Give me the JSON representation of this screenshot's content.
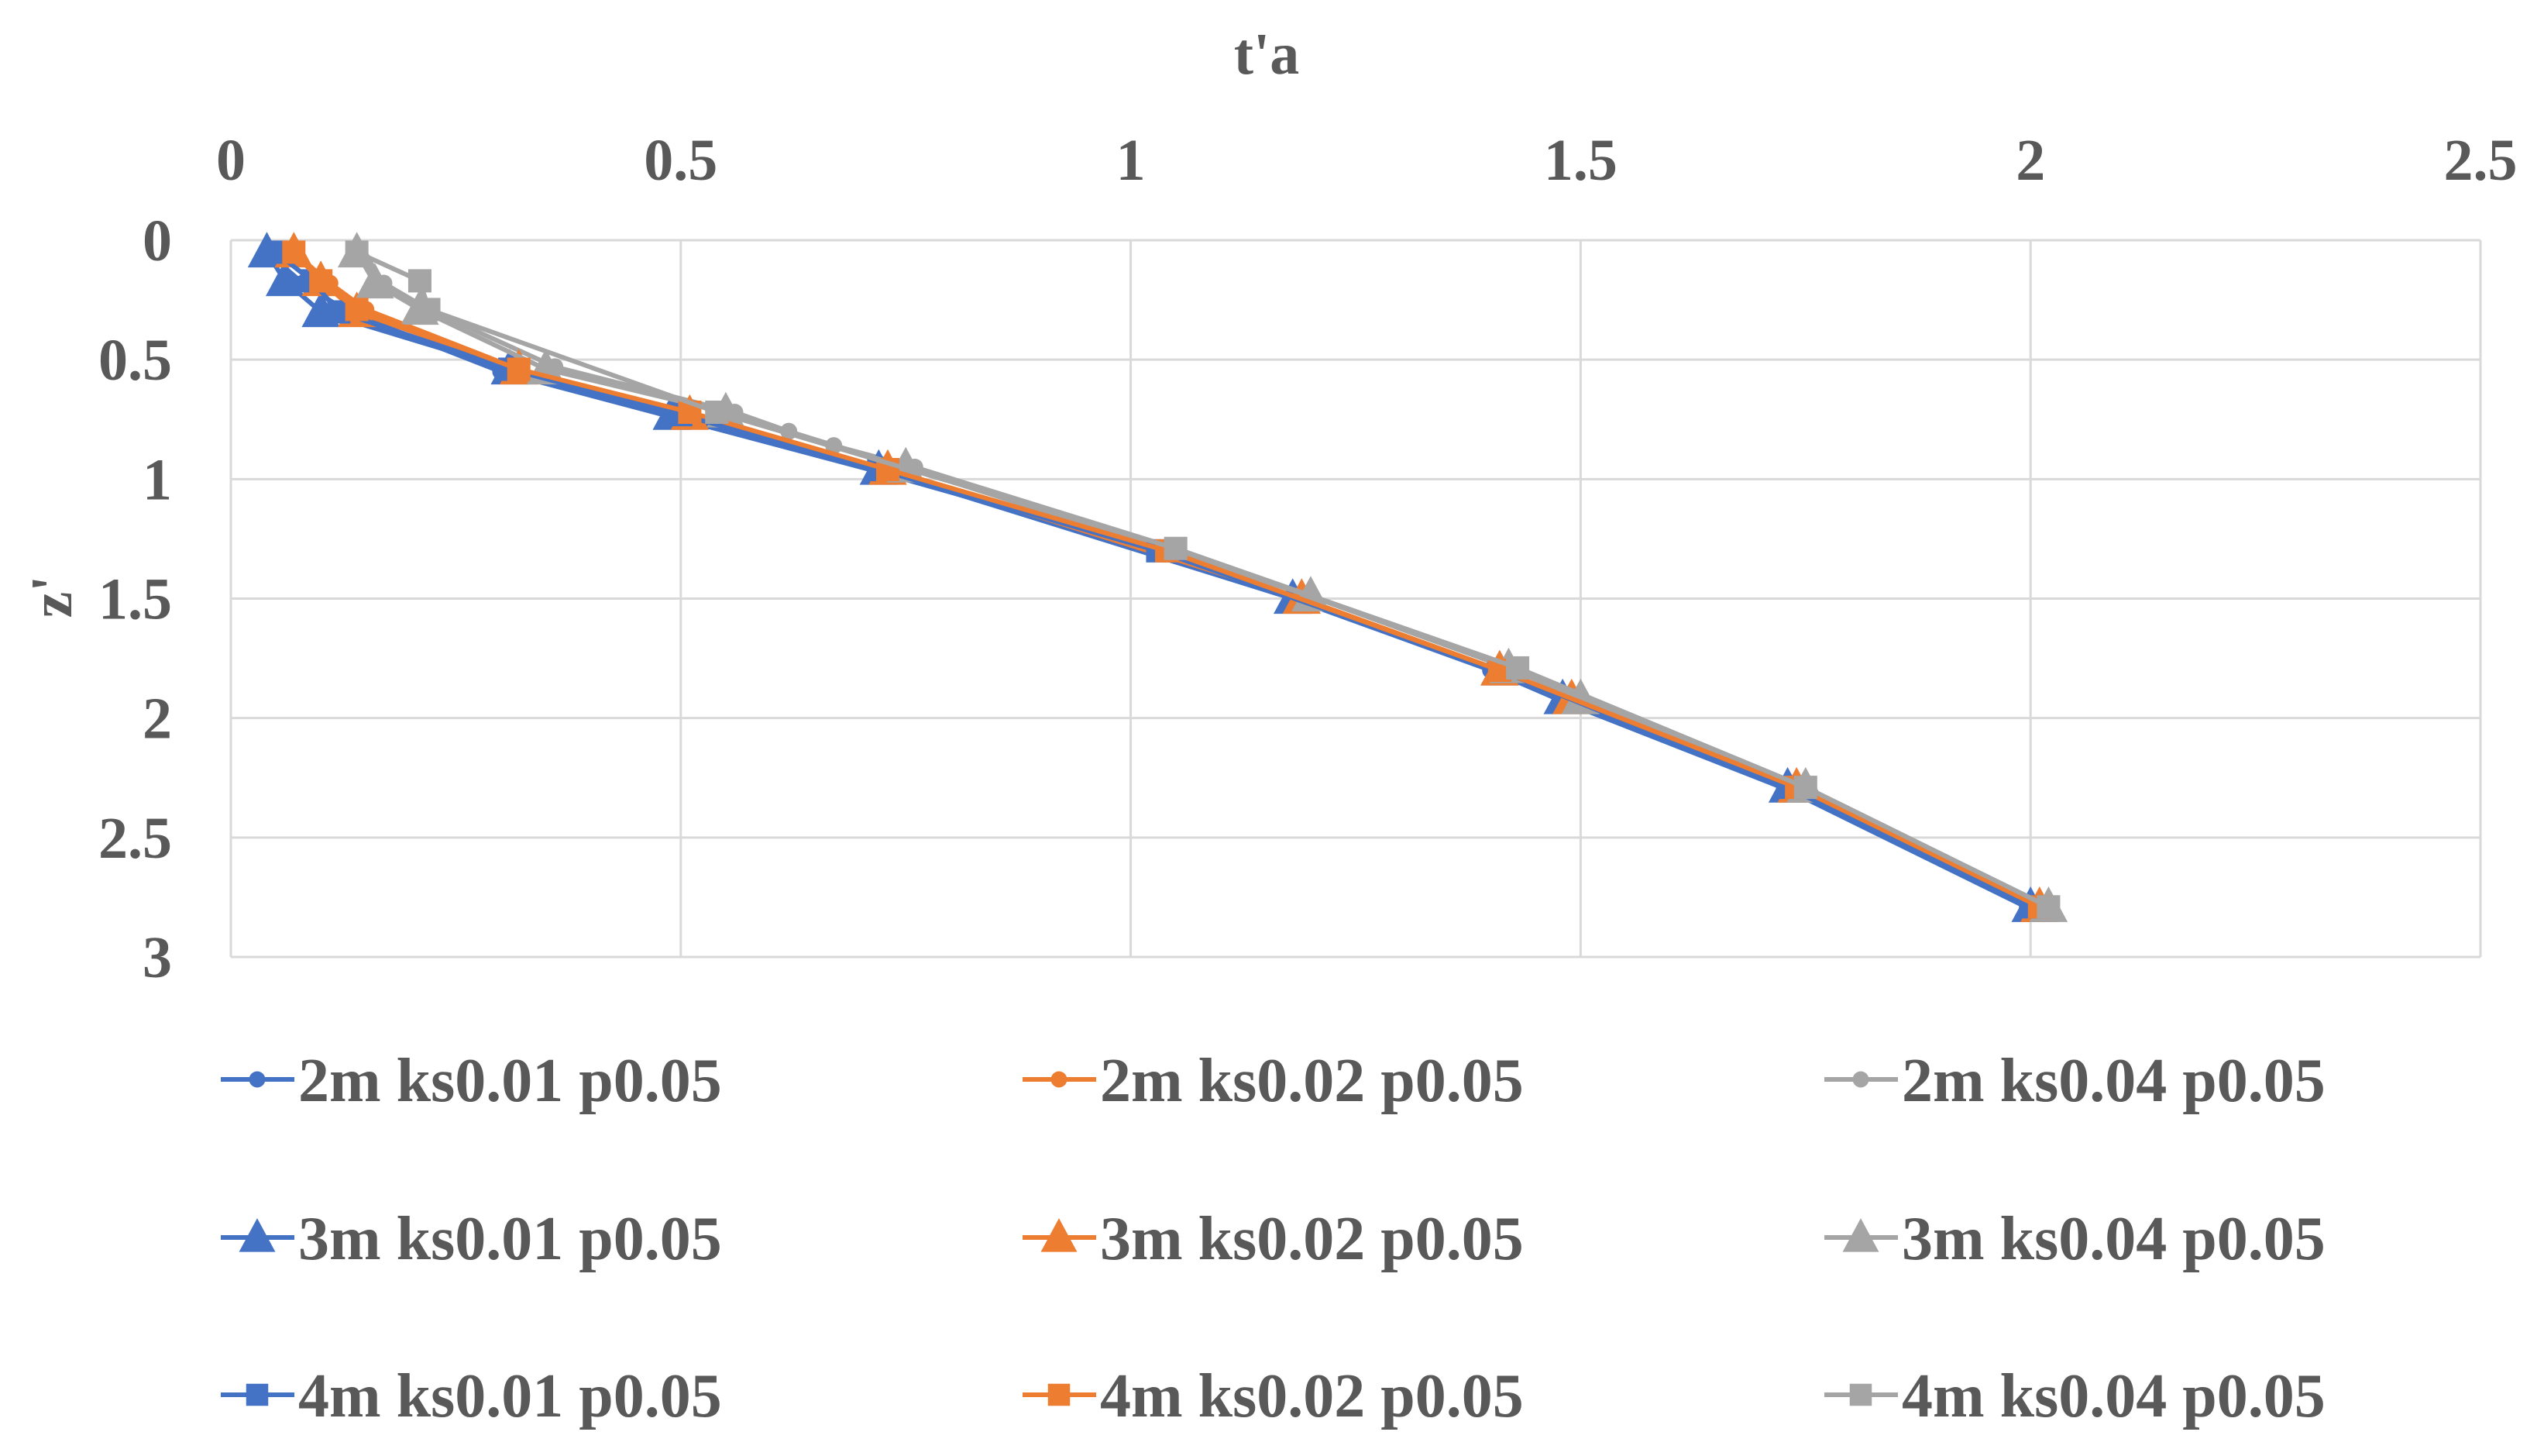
{
  "chart_data": {
    "type": "line",
    "title": "",
    "xlabel": "t'a",
    "ylabel": "z'",
    "xlim": [
      0,
      2.5
    ],
    "ylim": [
      0,
      3
    ],
    "y_inverted": true,
    "x_axis_position": "top",
    "x_ticks": [
      "0",
      "0.5",
      "1",
      "1.5",
      "2",
      "2.5"
    ],
    "y_ticks": [
      "0",
      "0.5",
      "1",
      "1.5",
      "2",
      "2.5",
      "3"
    ],
    "grid": true,
    "legend_position": "bottom",
    "colors": {
      "blue": "#4472C4",
      "orange": "#ED7D31",
      "gray": "#A5A5A5",
      "grid": "#D9D9D9",
      "text": "#595959"
    },
    "series": [
      {
        "name": "2m ks0.01 p0.05",
        "color": "#4472C4",
        "marker": "circle",
        "points": [
          {
            "x": 0.04,
            "y": 0.05
          },
          {
            "x": 0.08,
            "y": 0.18
          },
          {
            "x": 0.13,
            "y": 0.3
          },
          {
            "x": 0.3,
            "y": 0.55
          },
          {
            "x": 0.5,
            "y": 0.75
          },
          {
            "x": 0.72,
            "y": 0.97
          },
          {
            "x": 1.03,
            "y": 1.3
          },
          {
            "x": 1.18,
            "y": 1.5
          },
          {
            "x": 1.4,
            "y": 1.8
          },
          {
            "x": 1.48,
            "y": 1.93
          },
          {
            "x": 1.73,
            "y": 2.3
          },
          {
            "x": 2.0,
            "y": 2.8
          }
        ]
      },
      {
        "name": "2m ks0.02 p0.05",
        "color": "#ED7D31",
        "marker": "circle",
        "points": [
          {
            "x": 0.07,
            "y": 0.05
          },
          {
            "x": 0.11,
            "y": 0.18
          },
          {
            "x": 0.15,
            "y": 0.29
          },
          {
            "x": 0.32,
            "y": 0.54
          },
          {
            "x": 0.51,
            "y": 0.73
          },
          {
            "x": 0.73,
            "y": 0.96
          },
          {
            "x": 1.03,
            "y": 1.3
          },
          {
            "x": 1.19,
            "y": 1.5
          },
          {
            "x": 1.41,
            "y": 1.8
          },
          {
            "x": 1.48,
            "y": 1.92
          },
          {
            "x": 1.74,
            "y": 2.3
          },
          {
            "x": 2.01,
            "y": 2.8
          }
        ]
      },
      {
        "name": "2m ks0.04 p0.05",
        "color": "#A5A5A5",
        "marker": "circle",
        "points": [
          {
            "x": 0.14,
            "y": 0.05
          },
          {
            "x": 0.17,
            "y": 0.18
          },
          {
            "x": 0.22,
            "y": 0.29
          },
          {
            "x": 0.36,
            "y": 0.53
          },
          {
            "x": 0.56,
            "y": 0.72
          },
          {
            "x": 0.62,
            "y": 0.8
          },
          {
            "x": 0.67,
            "y": 0.86
          },
          {
            "x": 0.76,
            "y": 0.95
          },
          {
            "x": 1.05,
            "y": 1.29
          },
          {
            "x": 1.2,
            "y": 1.49
          },
          {
            "x": 1.42,
            "y": 1.79
          },
          {
            "x": 1.5,
            "y": 1.91
          },
          {
            "x": 1.75,
            "y": 2.29
          },
          {
            "x": 2.02,
            "y": 2.79
          }
        ]
      },
      {
        "name": "3m ks0.01 p0.05",
        "color": "#4472C4",
        "marker": "triangle",
        "points": [
          {
            "x": 0.04,
            "y": 0.05
          },
          {
            "x": 0.06,
            "y": 0.17
          },
          {
            "x": 0.1,
            "y": 0.3
          },
          {
            "x": 0.31,
            "y": 0.54
          },
          {
            "x": 0.49,
            "y": 0.73
          },
          {
            "x": 0.72,
            "y": 0.96
          },
          {
            "x": 1.18,
            "y": 1.5
          },
          {
            "x": 1.41,
            "y": 1.8
          },
          {
            "x": 1.48,
            "y": 1.92
          },
          {
            "x": 1.73,
            "y": 2.29
          },
          {
            "x": 2.0,
            "y": 2.79
          }
        ]
      },
      {
        "name": "3m ks0.02 p0.05",
        "color": "#ED7D31",
        "marker": "triangle",
        "points": [
          {
            "x": 0.07,
            "y": 0.05
          },
          {
            "x": 0.1,
            "y": 0.17
          },
          {
            "x": 0.14,
            "y": 0.3
          },
          {
            "x": 0.32,
            "y": 0.54
          },
          {
            "x": 0.51,
            "y": 0.73
          },
          {
            "x": 0.73,
            "y": 0.96
          },
          {
            "x": 1.19,
            "y": 1.5
          },
          {
            "x": 1.41,
            "y": 1.8
          },
          {
            "x": 1.49,
            "y": 1.92
          },
          {
            "x": 1.74,
            "y": 2.29
          },
          {
            "x": 2.01,
            "y": 2.79
          }
        ]
      },
      {
        "name": "3m ks0.04 p0.05",
        "color": "#A5A5A5",
        "marker": "triangle",
        "points": [
          {
            "x": 0.14,
            "y": 0.05
          },
          {
            "x": 0.16,
            "y": 0.18
          },
          {
            "x": 0.21,
            "y": 0.29
          },
          {
            "x": 0.35,
            "y": 0.54
          },
          {
            "x": 0.55,
            "y": 0.72
          },
          {
            "x": 0.75,
            "y": 0.95
          },
          {
            "x": 1.2,
            "y": 1.49
          },
          {
            "x": 1.42,
            "y": 1.79
          },
          {
            "x": 1.5,
            "y": 1.92
          },
          {
            "x": 1.75,
            "y": 2.29
          },
          {
            "x": 2.02,
            "y": 2.79
          }
        ]
      },
      {
        "name": "4m ks0.01 p0.05",
        "color": "#4472C4",
        "marker": "square",
        "points": [
          {
            "x": 0.05,
            "y": 0.05
          },
          {
            "x": 0.09,
            "y": 0.17
          },
          {
            "x": 0.12,
            "y": 0.3
          },
          {
            "x": 0.31,
            "y": 0.54
          },
          {
            "x": 0.5,
            "y": 0.73
          },
          {
            "x": 0.72,
            "y": 0.96
          },
          {
            "x": 1.03,
            "y": 1.3
          },
          {
            "x": 1.41,
            "y": 1.8
          },
          {
            "x": 1.73,
            "y": 2.29
          },
          {
            "x": 2.0,
            "y": 2.79
          }
        ]
      },
      {
        "name": "4m ks0.02 p0.05",
        "color": "#ED7D31",
        "marker": "square",
        "points": [
          {
            "x": 0.07,
            "y": 0.05
          },
          {
            "x": 0.1,
            "y": 0.17
          },
          {
            "x": 0.14,
            "y": 0.29
          },
          {
            "x": 0.32,
            "y": 0.54
          },
          {
            "x": 0.51,
            "y": 0.72
          },
          {
            "x": 0.73,
            "y": 0.96
          },
          {
            "x": 1.04,
            "y": 1.3
          },
          {
            "x": 1.41,
            "y": 1.8
          },
          {
            "x": 1.74,
            "y": 2.29
          },
          {
            "x": 2.01,
            "y": 2.79
          }
        ]
      },
      {
        "name": "4m ks0.04 p0.05",
        "color": "#A5A5A5",
        "marker": "square",
        "points": [
          {
            "x": 0.14,
            "y": 0.05
          },
          {
            "x": 0.21,
            "y": 0.17
          },
          {
            "x": 0.22,
            "y": 0.29
          },
          {
            "x": 0.54,
            "y": 0.72
          },
          {
            "x": 1.05,
            "y": 1.29
          },
          {
            "x": 1.43,
            "y": 1.79
          },
          {
            "x": 1.75,
            "y": 2.29
          },
          {
            "x": 2.02,
            "y": 2.79
          }
        ]
      }
    ]
  }
}
